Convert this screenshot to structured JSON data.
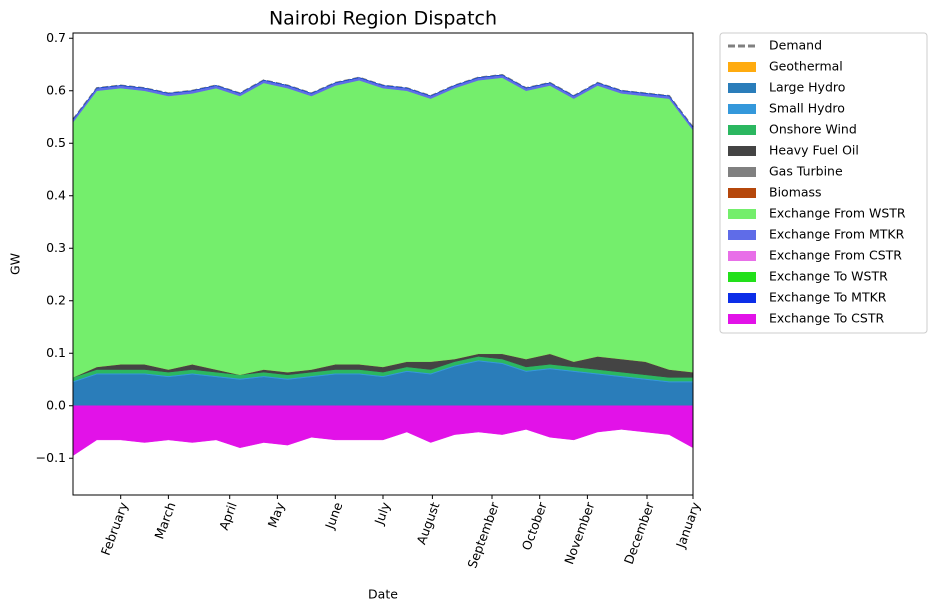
{
  "chart_data": {
    "type": "stacked_area",
    "title": "Nairobi Region Dispatch",
    "x_label": "Date",
    "y_label": "GW",
    "x": [
      0,
      14,
      28,
      42,
      56,
      70,
      84,
      98,
      112,
      126,
      140,
      154,
      168,
      182,
      196,
      210,
      224,
      238,
      252,
      266,
      280,
      294,
      308,
      322,
      336,
      350,
      364
    ],
    "xlim": [
      0,
      364
    ],
    "xticks": [
      {
        "value": 28,
        "label": "February"
      },
      {
        "value": 56,
        "label": "March"
      },
      {
        "value": 92,
        "label": "April"
      },
      {
        "value": 120,
        "label": "May"
      },
      {
        "value": 154,
        "label": "June"
      },
      {
        "value": 182,
        "label": "July"
      },
      {
        "value": 211,
        "label": "August"
      },
      {
        "value": 246,
        "label": "September"
      },
      {
        "value": 274,
        "label": "October"
      },
      {
        "value": 302,
        "label": "November"
      },
      {
        "value": 337,
        "label": "December"
      },
      {
        "value": 364,
        "label": "January"
      }
    ],
    "ylim": [
      -0.17,
      0.71
    ],
    "yticks": [
      {
        "value": -0.1,
        "label": "−0.1"
      },
      {
        "value": 0,
        "label": "0.0"
      },
      0.1,
      0.2,
      0.3,
      0.4,
      0.5,
      0.6,
      0.7
    ],
    "demand": {
      "name": "Demand",
      "color": "#808080",
      "values": [
        0.545,
        0.605,
        0.61,
        0.605,
        0.595,
        0.6,
        0.61,
        0.595,
        0.62,
        0.61,
        0.595,
        0.615,
        0.625,
        0.61,
        0.605,
        0.59,
        0.61,
        0.625,
        0.63,
        0.605,
        0.615,
        0.59,
        0.615,
        0.6,
        0.595,
        0.59,
        0.53
      ]
    },
    "series": [
      {
        "name": "Geothermal",
        "color": "#ffab0f",
        "values": [
          0,
          0,
          0,
          0,
          0,
          0,
          0,
          0,
          0,
          0,
          0,
          0,
          0,
          0,
          0,
          0,
          0,
          0,
          0,
          0,
          0,
          0,
          0,
          0,
          0,
          0,
          0
        ]
      },
      {
        "name": "Large Hydro",
        "color": "#2a7dba",
        "values": [
          0.045,
          0.06,
          0.06,
          0.06,
          0.055,
          0.06,
          0.055,
          0.05,
          0.055,
          0.05,
          0.055,
          0.06,
          0.06,
          0.055,
          0.065,
          0.06,
          0.075,
          0.085,
          0.08,
          0.065,
          0.07,
          0.065,
          0.06,
          0.055,
          0.05,
          0.045,
          0.045
        ]
      },
      {
        "name": "Small Hydro",
        "color": "#3498db",
        "values": [
          0.002,
          0.002,
          0.002,
          0.002,
          0.002,
          0.002,
          0.002,
          0.002,
          0.002,
          0.002,
          0.002,
          0.002,
          0.002,
          0.002,
          0.002,
          0.002,
          0.002,
          0.002,
          0.002,
          0.002,
          0.002,
          0.002,
          0.002,
          0.002,
          0.002,
          0.002,
          0.002
        ]
      },
      {
        "name": "Onshore Wind",
        "color": "#2bb760",
        "values": [
          0.007,
          0.007,
          0.007,
          0.007,
          0.007,
          0.007,
          0.007,
          0.007,
          0.007,
          0.007,
          0.007,
          0.007,
          0.007,
          0.007,
          0.007,
          0.007,
          0.007,
          0.007,
          0.007,
          0.007,
          0.007,
          0.007,
          0.007,
          0.007,
          0.007,
          0.007,
          0.007
        ]
      },
      {
        "name": "Heavy Fuel Oil",
        "color": "#444444",
        "values": [
          0,
          0.005,
          0.01,
          0.01,
          0.005,
          0.01,
          0.005,
          0,
          0.005,
          0.005,
          0.005,
          0.01,
          0.01,
          0.01,
          0.01,
          0.015,
          0.005,
          0.005,
          0.01,
          0.015,
          0.02,
          0.01,
          0.025,
          0.025,
          0.025,
          0.015,
          0.01
        ]
      },
      {
        "name": "Gas Turbine",
        "color": "#808080",
        "values": [
          0,
          0,
          0,
          0,
          0,
          0,
          0,
          0,
          0,
          0,
          0,
          0,
          0,
          0,
          0,
          0,
          0,
          0,
          0,
          0,
          0,
          0,
          0,
          0,
          0,
          0,
          0
        ]
      },
      {
        "name": "Biomass",
        "color": "#b5470b",
        "values": [
          0,
          0,
          0,
          0,
          0,
          0,
          0,
          0,
          0,
          0,
          0,
          0,
          0,
          0,
          0,
          0,
          0,
          0,
          0,
          0,
          0,
          0,
          0,
          0,
          0,
          0,
          0
        ]
      },
      {
        "name": "Exchange From WSTR",
        "color": "#74ee6c",
        "values": [
          0.486,
          0.526,
          0.526,
          0.521,
          0.521,
          0.516,
          0.536,
          0.531,
          0.546,
          0.541,
          0.521,
          0.531,
          0.541,
          0.531,
          0.516,
          0.501,
          0.516,
          0.521,
          0.526,
          0.511,
          0.511,
          0.501,
          0.516,
          0.506,
          0.506,
          0.516,
          0.461
        ]
      },
      {
        "name": "Exchange From MTKR",
        "color": "#5f6ce8",
        "values": [
          0.005,
          0.005,
          0.005,
          0.005,
          0.005,
          0.005,
          0.005,
          0.005,
          0.005,
          0.005,
          0.005,
          0.005,
          0.005,
          0.005,
          0.005,
          0.005,
          0.005,
          0.005,
          0.005,
          0.005,
          0.005,
          0.005,
          0.005,
          0.005,
          0.005,
          0.005,
          0.005
        ]
      },
      {
        "name": "Exchange From CSTR",
        "color": "#e86fe8",
        "values": [
          0,
          0,
          0,
          0,
          0,
          0,
          0,
          0,
          0,
          0,
          0,
          0,
          0,
          0,
          0,
          0,
          0,
          0,
          0,
          0,
          0,
          0,
          0,
          0,
          0,
          0,
          0
        ]
      },
      {
        "name": "Exchange To WSTR",
        "color": "#22e01a",
        "values": [
          0,
          0,
          0,
          0,
          0,
          0,
          0,
          0,
          0,
          0,
          0,
          0,
          0,
          0,
          0,
          0,
          0,
          0,
          0,
          0,
          0,
          0,
          0,
          0,
          0,
          0,
          0
        ]
      },
      {
        "name": "Exchange To MTKR",
        "color": "#0c2ee8",
        "values": [
          0,
          0,
          0,
          0,
          0,
          0,
          0,
          0,
          0,
          0,
          0,
          0,
          0,
          0,
          0,
          0,
          0,
          0,
          0,
          0,
          0,
          0,
          0,
          0,
          0,
          0,
          0
        ]
      },
      {
        "name": "Exchange To CSTR",
        "color": "#e212e8",
        "values": [
          -0.095,
          -0.065,
          -0.065,
          -0.07,
          -0.065,
          -0.07,
          -0.065,
          -0.08,
          -0.07,
          -0.075,
          -0.06,
          -0.065,
          -0.065,
          -0.065,
          -0.05,
          -0.07,
          -0.055,
          -0.05,
          -0.055,
          -0.045,
          -0.06,
          -0.065,
          -0.05,
          -0.045,
          -0.05,
          -0.055,
          -0.08
        ]
      }
    ]
  }
}
